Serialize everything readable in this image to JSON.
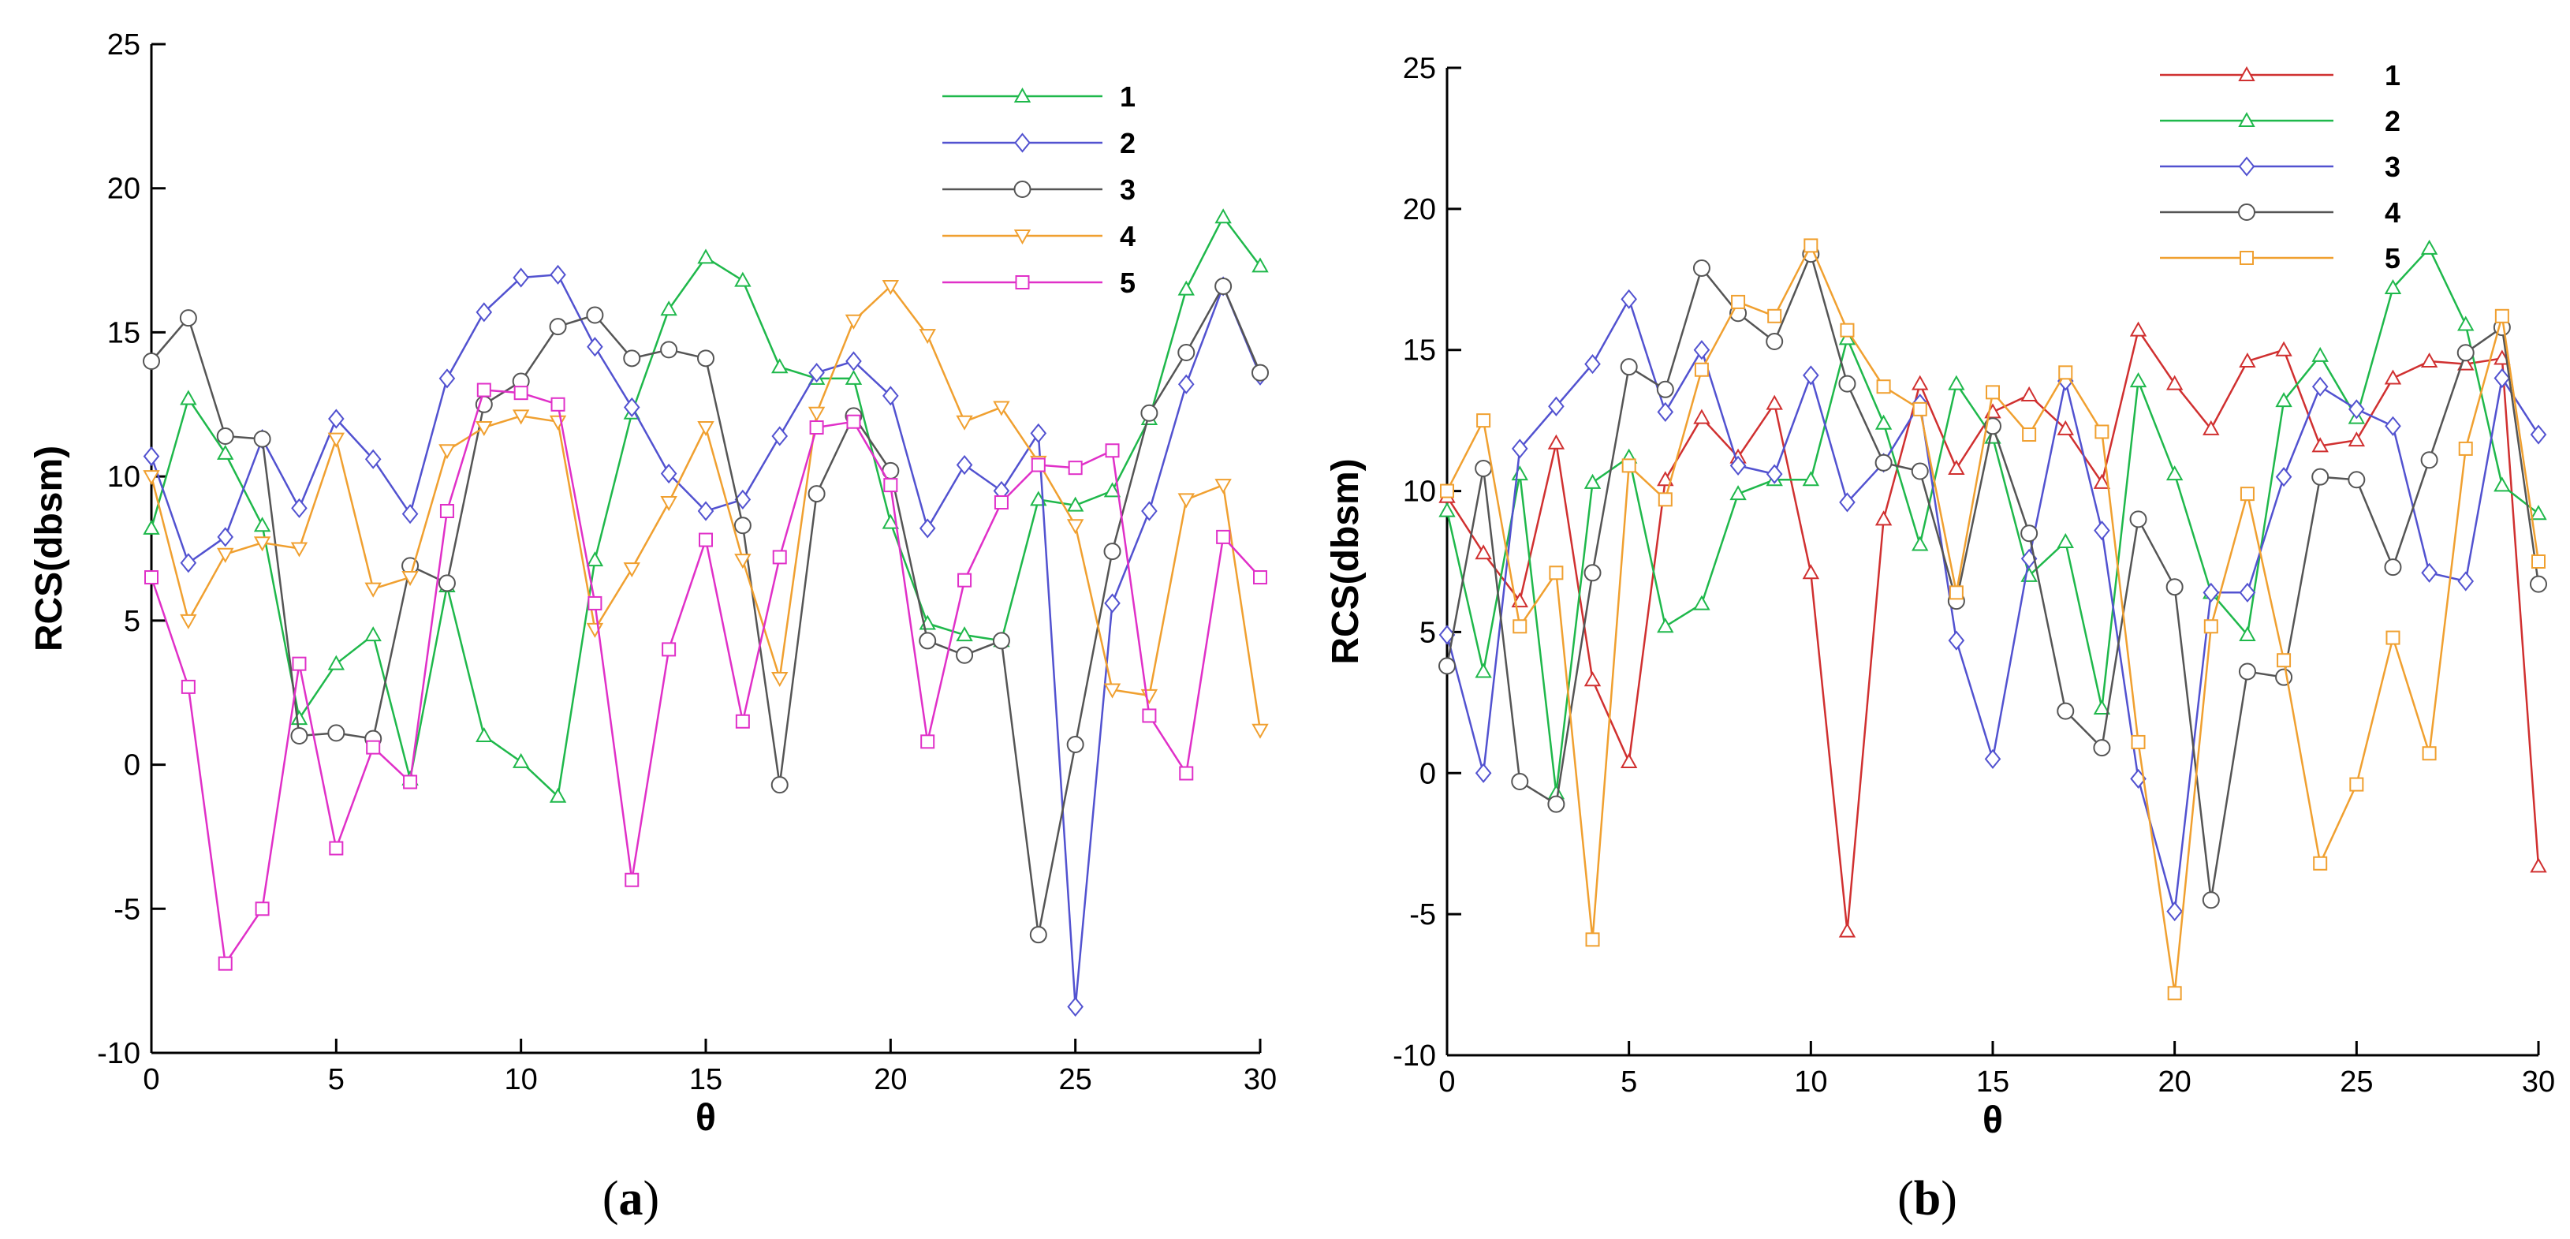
{
  "chart_data": [
    {
      "type": "line",
      "panel": "a",
      "caption_open": "(",
      "caption_letter": "a",
      "caption_close": ")",
      "xlabel": "θ",
      "ylabel": "RCS(dbsm)",
      "xlim": [
        0,
        30
      ],
      "ylim": [
        -10,
        25
      ],
      "xticks": [
        0,
        5,
        10,
        15,
        20,
        25,
        30
      ],
      "yticks": [
        -10,
        -5,
        0,
        5,
        10,
        15,
        20,
        25
      ],
      "x": [
        0,
        1,
        2,
        3,
        4,
        5,
        6,
        7,
        8,
        9,
        10,
        11,
        12,
        13,
        14,
        15,
        16,
        17,
        18,
        19,
        20,
        21,
        22,
        23,
        24,
        25,
        26,
        27,
        28,
        29,
        30
      ],
      "series": [
        {
          "name": "1",
          "color": "#1fb84b",
          "marker": "triangle-up",
          "values": [
            8.2,
            12.7,
            10.8,
            8.3,
            1.6,
            3.5,
            4.5,
            -0.5,
            6.2,
            1.0,
            0.1,
            -1.1,
            7.1,
            12.2,
            15.8,
            17.6,
            16.8,
            13.8,
            13.4,
            13.4,
            8.4,
            4.9,
            4.5,
            4.3,
            9.2,
            9.0,
            9.5,
            12.0,
            16.5,
            19.0,
            17.3
          ]
        },
        {
          "name": "2",
          "color": "#5252d0",
          "marker": "diamond",
          "values": [
            10.7,
            7.0,
            7.9,
            11.3,
            8.9,
            12.0,
            10.6,
            8.7,
            13.4,
            15.7,
            16.9,
            17.0,
            14.5,
            12.4,
            10.1,
            8.8,
            9.2,
            11.4,
            13.6,
            14.0,
            12.8,
            8.2,
            10.4,
            9.5,
            11.5,
            -8.4,
            5.6,
            8.8,
            13.2,
            16.6,
            13.5
          ]
        },
        {
          "name": "3",
          "color": "#555555",
          "marker": "circle",
          "values": [
            14.0,
            15.5,
            11.4,
            11.3,
            1.0,
            1.1,
            0.9,
            6.9,
            6.3,
            12.5,
            13.3,
            15.2,
            15.6,
            14.1,
            14.4,
            14.1,
            8.3,
            -0.7,
            9.4,
            12.1,
            10.2,
            4.3,
            3.8,
            4.3,
            -5.9,
            0.7,
            7.4,
            12.2,
            14.3,
            16.6,
            13.6
          ]
        },
        {
          "name": "4",
          "color": "#f0a030",
          "marker": "triangle-down",
          "values": [
            10.0,
            5.0,
            7.3,
            7.7,
            7.5,
            11.3,
            6.1,
            6.5,
            10.9,
            11.7,
            12.1,
            11.9,
            4.7,
            6.8,
            9.1,
            11.7,
            7.1,
            3.0,
            12.2,
            15.4,
            16.6,
            14.9,
            11.9,
            12.4,
            10.5,
            8.3,
            2.6,
            2.4,
            9.2,
            9.7,
            1.2
          ]
        },
        {
          "name": "5",
          "color": "#e030c8",
          "marker": "square",
          "values": [
            6.5,
            2.7,
            -6.9,
            -5.0,
            3.5,
            -2.9,
            0.6,
            -0.6,
            8.8,
            13.0,
            12.9,
            12.5,
            5.6,
            -4.0,
            4.0,
            7.8,
            1.5,
            7.2,
            11.7,
            11.9,
            9.7,
            0.8,
            6.4,
            9.1,
            10.4,
            10.3,
            10.9,
            1.7,
            -0.3,
            7.9,
            6.5
          ]
        }
      ]
    },
    {
      "type": "line",
      "panel": "b",
      "caption_open": "(",
      "caption_letter": "b",
      "caption_close": ")",
      "xlabel": "θ",
      "ylabel": "RCS(dbsm)",
      "xlim": [
        0,
        30
      ],
      "ylim": [
        -10,
        25
      ],
      "xticks": [
        0,
        5,
        10,
        15,
        20,
        25,
        30
      ],
      "yticks": [
        -10,
        -5,
        0,
        5,
        10,
        15,
        20,
        25
      ],
      "x": [
        0,
        1,
        2,
        3,
        4,
        5,
        6,
        7,
        8,
        9,
        10,
        11,
        12,
        13,
        14,
        15,
        16,
        17,
        18,
        19,
        20,
        21,
        22,
        23,
        24,
        25,
        26,
        27,
        28,
        29,
        30
      ],
      "series": [
        {
          "name": "1",
          "color": "#d03030",
          "marker": "triangle-up",
          "values": [
            9.8,
            7.8,
            6.1,
            11.7,
            3.3,
            0.4,
            10.4,
            12.6,
            11.2,
            13.1,
            7.1,
            -5.6,
            9.0,
            13.8,
            10.8,
            12.8,
            13.4,
            12.2,
            10.3,
            15.7,
            13.8,
            12.2,
            14.6,
            15.0,
            11.6,
            11.8,
            14.0,
            14.6,
            14.5,
            14.7,
            -3.3
          ]
        },
        {
          "name": "2",
          "color": "#1fb84b",
          "marker": "triangle-up",
          "values": [
            9.3,
            3.6,
            10.6,
            -0.7,
            10.3,
            11.2,
            5.2,
            6.0,
            9.9,
            10.4,
            10.4,
            15.4,
            12.4,
            8.1,
            13.8,
            11.9,
            7.0,
            8.2,
            2.3,
            13.9,
            10.6,
            6.4,
            4.9,
            13.2,
            14.8,
            12.6,
            17.2,
            18.6,
            15.9,
            10.2,
            9.2
          ]
        },
        {
          "name": "3",
          "color": "#5252d0",
          "marker": "diamond",
          "values": [
            4.9,
            0.0,
            11.5,
            13.0,
            14.5,
            16.8,
            12.8,
            15.0,
            10.9,
            10.6,
            14.1,
            9.6,
            11.0,
            13.1,
            4.7,
            0.5,
            7.6,
            13.9,
            8.6,
            -0.2,
            -4.9,
            6.4,
            6.4,
            10.5,
            13.7,
            12.9,
            12.3,
            7.1,
            6.8,
            14.0,
            12.0
          ]
        },
        {
          "name": "4",
          "color": "#555555",
          "marker": "circle",
          "values": [
            3.8,
            10.8,
            -0.3,
            -1.1,
            7.1,
            14.4,
            13.6,
            17.9,
            16.3,
            15.3,
            18.4,
            13.8,
            11.0,
            10.7,
            6.1,
            12.3,
            8.5,
            2.2,
            0.9,
            9.0,
            6.6,
            -4.5,
            3.6,
            3.4,
            10.5,
            10.4,
            7.3,
            11.1,
            14.9,
            15.8,
            6.7
          ]
        },
        {
          "name": "5",
          "color": "#f0a030",
          "marker": "square",
          "values": [
            10.0,
            12.5,
            5.2,
            7.1,
            -5.9,
            10.9,
            9.7,
            14.3,
            16.7,
            16.2,
            18.7,
            15.7,
            13.7,
            12.9,
            6.4,
            13.5,
            12.0,
            14.2,
            12.1,
            1.1,
            -7.8,
            5.2,
            9.9,
            4.0,
            -3.2,
            -0.4,
            4.8,
            0.7,
            11.5,
            16.2,
            7.5
          ]
        }
      ]
    }
  ]
}
